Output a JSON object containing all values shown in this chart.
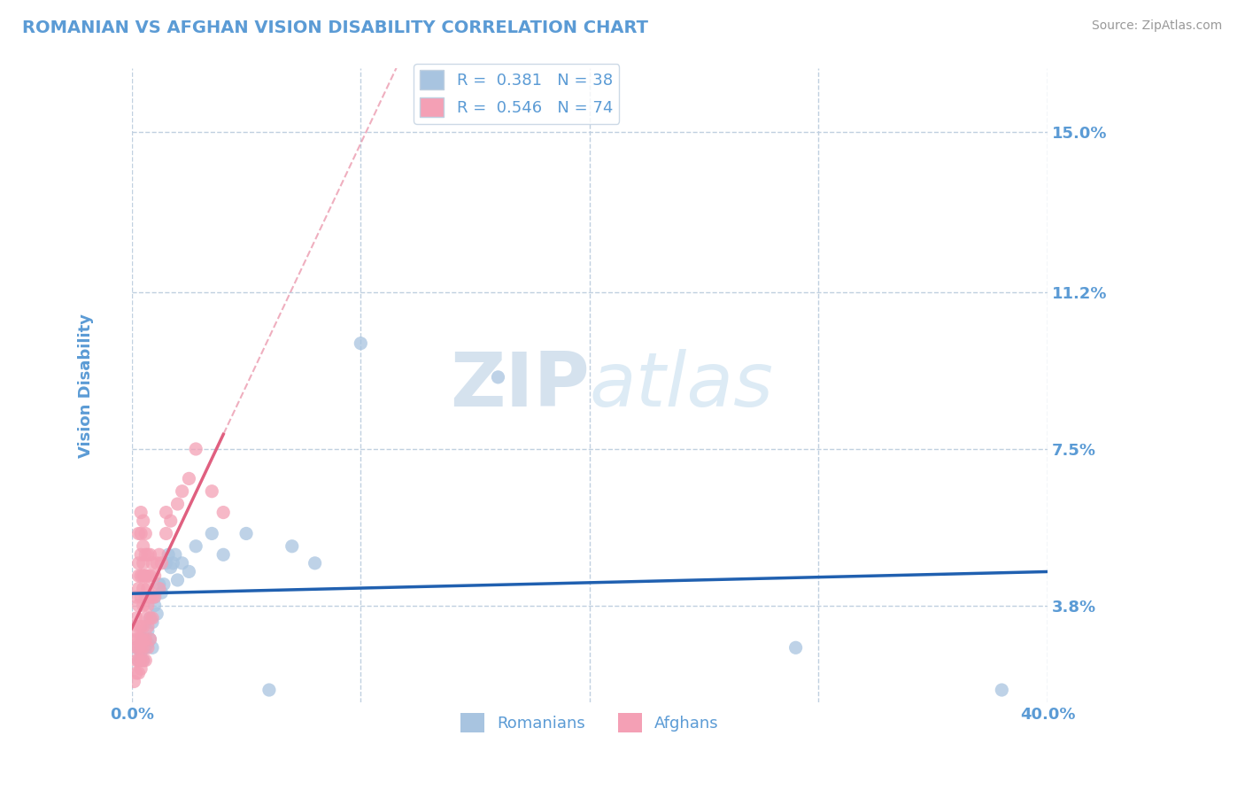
{
  "title": "ROMANIAN VS AFGHAN VISION DISABILITY CORRELATION CHART",
  "source": "Source: ZipAtlas.com",
  "ylabel": "Vision Disability",
  "ytick_labels": [
    "3.8%",
    "7.5%",
    "11.2%",
    "15.0%"
  ],
  "ytick_values": [
    0.038,
    0.075,
    0.112,
    0.15
  ],
  "xlim": [
    0.0,
    0.4
  ],
  "ylim": [
    0.015,
    0.165
  ],
  "legend_romanian": "R =  0.381   N = 38",
  "legend_afghan": "R =  0.546   N = 74",
  "legend_label1": "Romanians",
  "legend_label2": "Afghans",
  "romanian_color": "#a8c4e0",
  "afghan_color": "#f4a0b5",
  "romanian_line_color": "#2060b0",
  "afghan_line_color": "#e06080",
  "watermark": "ZIPatlas",
  "romanian_points": [
    [
      0.002,
      0.028
    ],
    [
      0.003,
      0.025
    ],
    [
      0.004,
      0.027
    ],
    [
      0.005,
      0.025
    ],
    [
      0.005,
      0.03
    ],
    [
      0.006,
      0.028
    ],
    [
      0.006,
      0.03
    ],
    [
      0.007,
      0.032
    ],
    [
      0.007,
      0.029
    ],
    [
      0.008,
      0.03
    ],
    [
      0.008,
      0.035
    ],
    [
      0.009,
      0.028
    ],
    [
      0.009,
      0.034
    ],
    [
      0.01,
      0.04
    ],
    [
      0.01,
      0.038
    ],
    [
      0.011,
      0.036
    ],
    [
      0.012,
      0.043
    ],
    [
      0.013,
      0.041
    ],
    [
      0.014,
      0.043
    ],
    [
      0.015,
      0.048
    ],
    [
      0.016,
      0.05
    ],
    [
      0.017,
      0.047
    ],
    [
      0.018,
      0.048
    ],
    [
      0.019,
      0.05
    ],
    [
      0.02,
      0.044
    ],
    [
      0.022,
      0.048
    ],
    [
      0.025,
      0.046
    ],
    [
      0.028,
      0.052
    ],
    [
      0.035,
      0.055
    ],
    [
      0.04,
      0.05
    ],
    [
      0.05,
      0.055
    ],
    [
      0.06,
      0.018
    ],
    [
      0.07,
      0.052
    ],
    [
      0.08,
      0.048
    ],
    [
      0.1,
      0.1
    ],
    [
      0.16,
      0.092
    ],
    [
      0.29,
      0.028
    ],
    [
      0.38,
      0.018
    ]
  ],
  "afghan_points": [
    [
      0.001,
      0.02
    ],
    [
      0.002,
      0.022
    ],
    [
      0.002,
      0.025
    ],
    [
      0.002,
      0.028
    ],
    [
      0.002,
      0.03
    ],
    [
      0.002,
      0.032
    ],
    [
      0.002,
      0.035
    ],
    [
      0.002,
      0.04
    ],
    [
      0.003,
      0.022
    ],
    [
      0.003,
      0.025
    ],
    [
      0.003,
      0.028
    ],
    [
      0.003,
      0.03
    ],
    [
      0.003,
      0.033
    ],
    [
      0.003,
      0.038
    ],
    [
      0.003,
      0.042
    ],
    [
      0.003,
      0.045
    ],
    [
      0.003,
      0.048
    ],
    [
      0.003,
      0.055
    ],
    [
      0.004,
      0.023
    ],
    [
      0.004,
      0.025
    ],
    [
      0.004,
      0.028
    ],
    [
      0.004,
      0.03
    ],
    [
      0.004,
      0.033
    ],
    [
      0.004,
      0.04
    ],
    [
      0.004,
      0.045
    ],
    [
      0.004,
      0.05
    ],
    [
      0.004,
      0.055
    ],
    [
      0.004,
      0.06
    ],
    [
      0.005,
      0.025
    ],
    [
      0.005,
      0.028
    ],
    [
      0.005,
      0.03
    ],
    [
      0.005,
      0.033
    ],
    [
      0.005,
      0.038
    ],
    [
      0.005,
      0.042
    ],
    [
      0.005,
      0.045
    ],
    [
      0.005,
      0.048
    ],
    [
      0.005,
      0.052
    ],
    [
      0.005,
      0.058
    ],
    [
      0.006,
      0.025
    ],
    [
      0.006,
      0.03
    ],
    [
      0.006,
      0.035
    ],
    [
      0.006,
      0.04
    ],
    [
      0.006,
      0.045
    ],
    [
      0.006,
      0.05
    ],
    [
      0.006,
      0.055
    ],
    [
      0.007,
      0.028
    ],
    [
      0.007,
      0.033
    ],
    [
      0.007,
      0.038
    ],
    [
      0.007,
      0.042
    ],
    [
      0.007,
      0.045
    ],
    [
      0.007,
      0.05
    ],
    [
      0.008,
      0.03
    ],
    [
      0.008,
      0.035
    ],
    [
      0.008,
      0.04
    ],
    [
      0.008,
      0.045
    ],
    [
      0.008,
      0.05
    ],
    [
      0.009,
      0.035
    ],
    [
      0.009,
      0.04
    ],
    [
      0.009,
      0.048
    ],
    [
      0.01,
      0.04
    ],
    [
      0.01,
      0.045
    ],
    [
      0.011,
      0.048
    ],
    [
      0.012,
      0.042
    ],
    [
      0.012,
      0.05
    ],
    [
      0.013,
      0.048
    ],
    [
      0.015,
      0.055
    ],
    [
      0.015,
      0.06
    ],
    [
      0.017,
      0.058
    ],
    [
      0.02,
      0.062
    ],
    [
      0.022,
      0.065
    ],
    [
      0.025,
      0.068
    ],
    [
      0.028,
      0.075
    ],
    [
      0.035,
      0.065
    ],
    [
      0.04,
      0.06
    ]
  ],
  "background_color": "#ffffff",
  "grid_color": "#c0d0e0",
  "title_color": "#5b9bd5",
  "source_color": "#999999",
  "axis_label_color": "#5b9bd5",
  "tick_color": "#5b9bd5"
}
